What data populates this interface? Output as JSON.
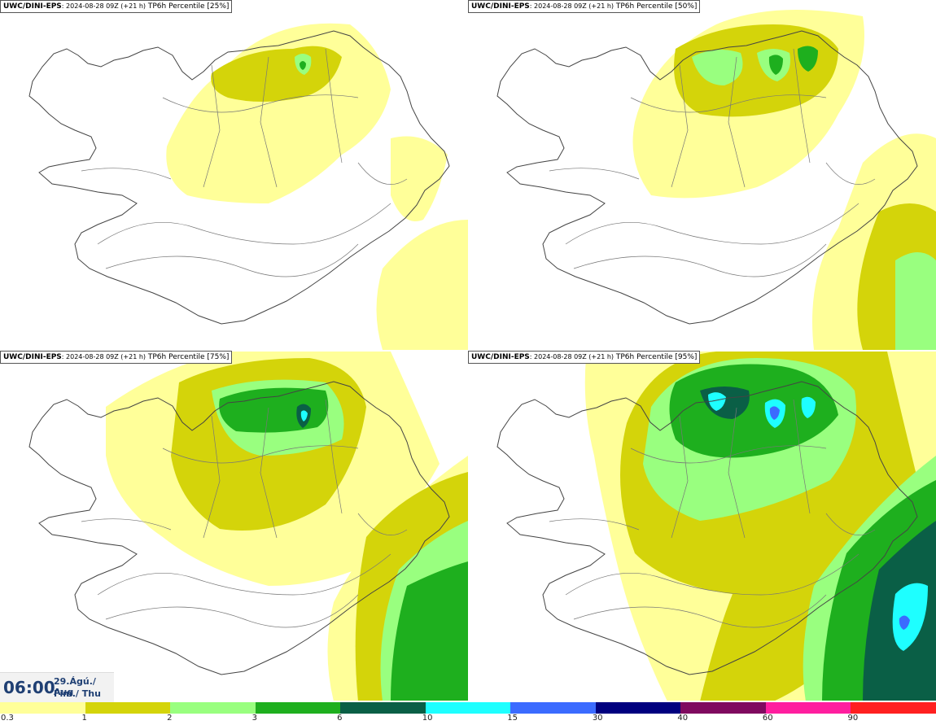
{
  "panels": [
    {
      "model": "UWC/DINI-EPS",
      "run_info": ": 2024-08-28 09Z (+21 h)",
      "product": " TP6h Percentile [25%]",
      "percentile": 25
    },
    {
      "model": "UWC/DINI-EPS",
      "run_info": ": 2024-08-28 09Z (+21 h)",
      "product": " TP6h Percentile [50%]",
      "percentile": 50
    },
    {
      "model": "UWC/DINI-EPS",
      "run_info": ": 2024-08-28 09Z (+21 h)",
      "product": " TP6h Percentile [75%]",
      "percentile": 75
    },
    {
      "model": "UWC/DINI-EPS",
      "run_info": ": 2024-08-28 09Z (+21 h)",
      "product": " TP6h Percentile [95%]",
      "percentile": 95
    }
  ],
  "valid_time": {
    "time": "06:00",
    "date": "29.Ágú./ Aug",
    "day": "Fim./ Thu"
  },
  "legend": {
    "labels": [
      "0.3",
      "1",
      "2",
      "3",
      "6",
      "10",
      "15",
      "30",
      "40",
      "60",
      "90"
    ],
    "colors": [
      "#ffff99",
      "#d4d40a",
      "#99ff7f",
      "#1eaf1e",
      "#0a5f46",
      "#1effff",
      "#3b6bff",
      "#00007f",
      "#7f0a5f",
      "#ff1e9f",
      "#ff2020"
    ]
  }
}
